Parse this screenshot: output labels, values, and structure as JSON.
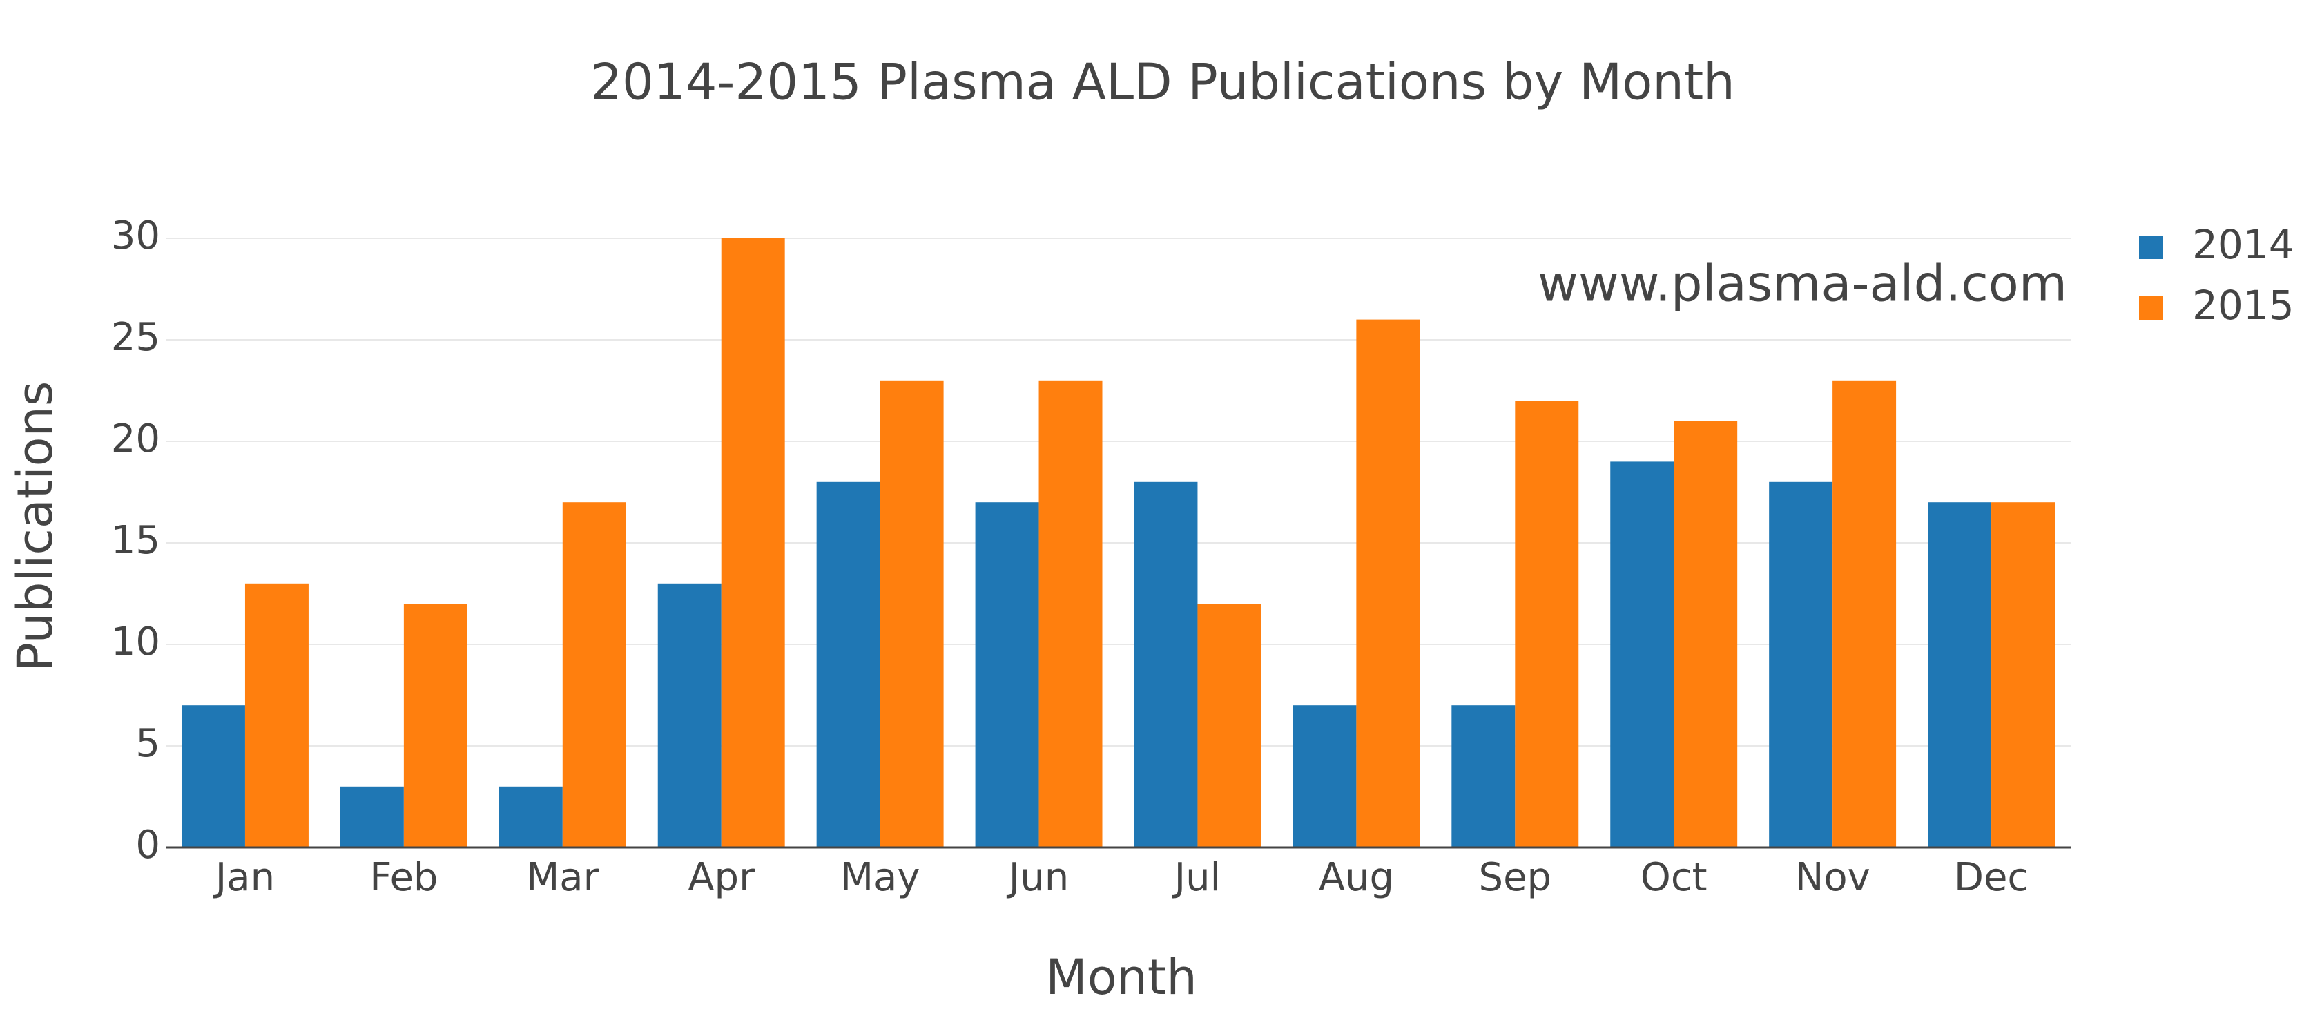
{
  "chart_data": {
    "type": "bar",
    "title": "2014-2015 Plasma ALD Publications by Month",
    "x_label": "Month",
    "y_label": "Publications",
    "annotation": "www.plasma-ald.com",
    "categories": [
      "Jan",
      "Feb",
      "Mar",
      "Apr",
      "May",
      "Jun",
      "Jul",
      "Aug",
      "Sep",
      "Oct",
      "Nov",
      "Dec"
    ],
    "series": [
      {
        "name": "2014",
        "color": "#1f77b4",
        "values": [
          7,
          3,
          3,
          13,
          18,
          17,
          18,
          7,
          7,
          19,
          18,
          17
        ]
      },
      {
        "name": "2015",
        "color": "#ff7f0e",
        "values": [
          13,
          12,
          17,
          30,
          23,
          23,
          12,
          26,
          22,
          21,
          23,
          17
        ]
      }
    ],
    "ylim": [
      0,
      30
    ],
    "yticks": [
      0,
      5,
      10,
      15,
      20,
      25,
      30
    ],
    "grid": true
  }
}
